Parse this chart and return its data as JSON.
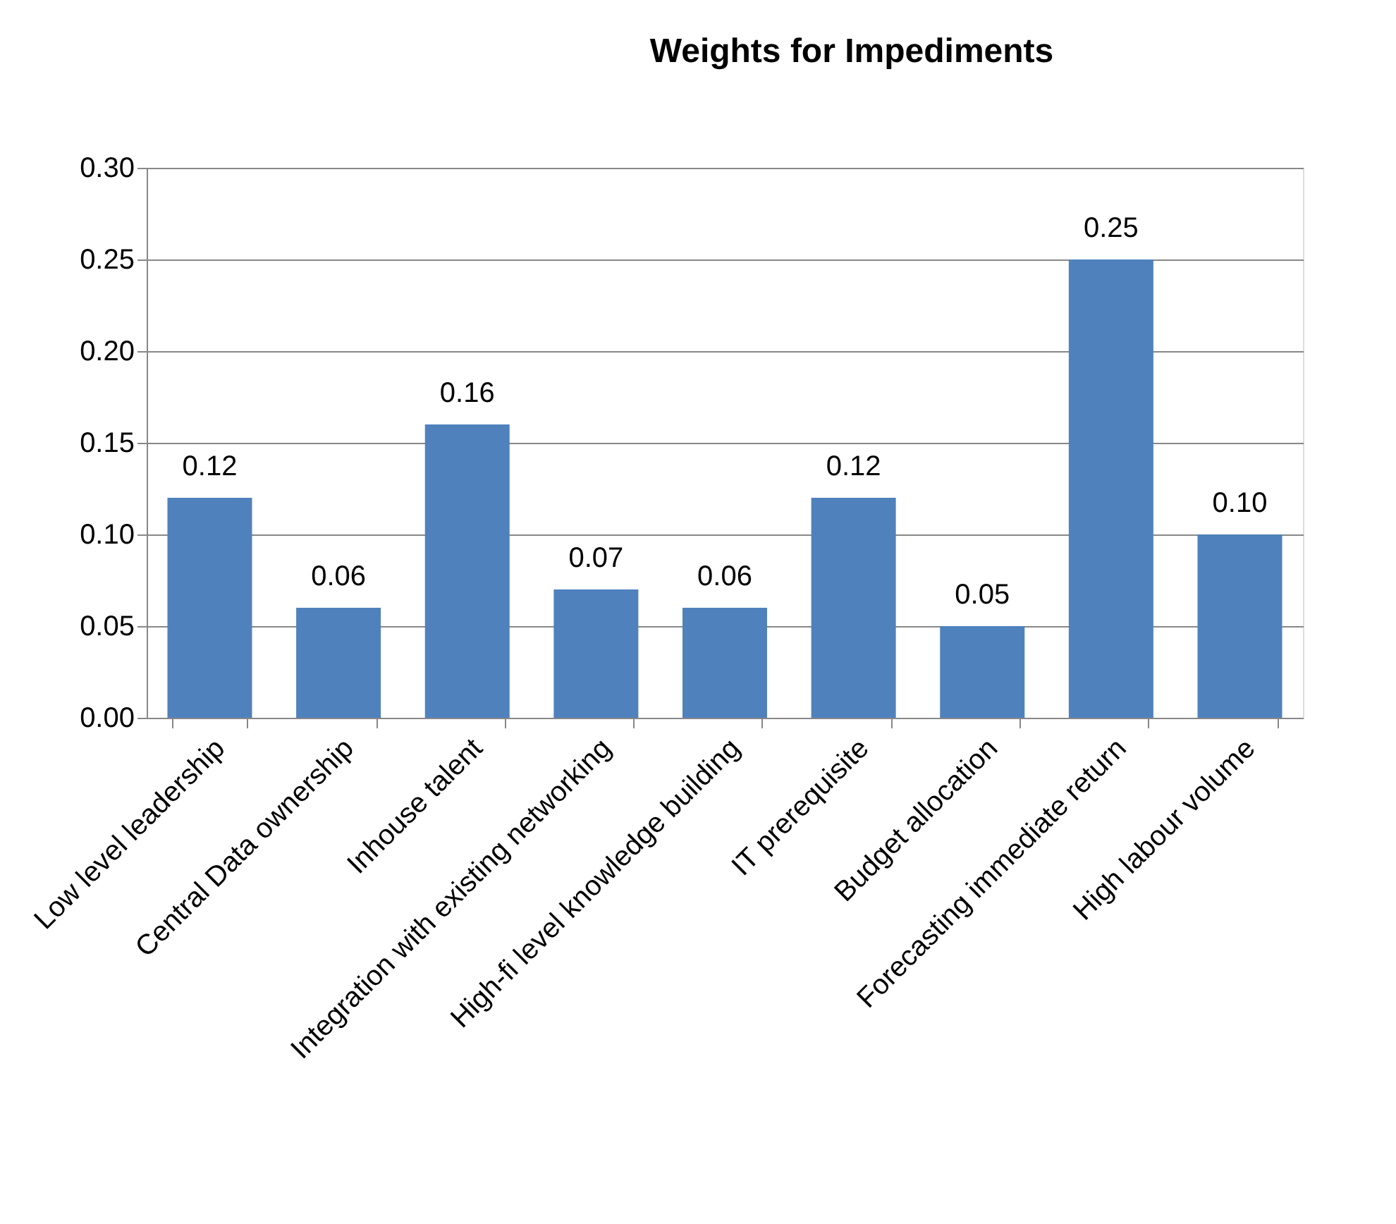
{
  "chart_data": {
    "type": "bar",
    "title": "Weights for Impediments",
    "categories": [
      "Low level leadership",
      "Central Data ownership",
      "Inhouse talent",
      "Integration with existing networking",
      "High-fi level knowledge building",
      "IT prerequisite",
      "Budget allocation",
      "Forecasting immediate return",
      "High labour volume"
    ],
    "values": [
      0.12,
      0.06,
      0.16,
      0.07,
      0.06,
      0.12,
      0.05,
      0.25,
      0.1
    ],
    "value_labels": [
      "0.12",
      "0.06",
      "0.16",
      "0.07",
      "0.06",
      "0.12",
      "0.05",
      "0.25",
      "0.10"
    ],
    "color": "#4f81bd",
    "ylim": [
      0,
      0.3
    ],
    "yticks": [
      {
        "value": 0,
        "label": "0.00"
      },
      {
        "value": 0.05,
        "label": "0.05"
      },
      {
        "value": 0.1,
        "label": "0.10"
      },
      {
        "value": 0.15,
        "label": "0.15"
      },
      {
        "value": 0.2,
        "label": "0.20"
      },
      {
        "value": 0.25,
        "label": "0.25"
      },
      {
        "value": 0.3,
        "label": "0.30"
      }
    ],
    "grid": "y"
  }
}
